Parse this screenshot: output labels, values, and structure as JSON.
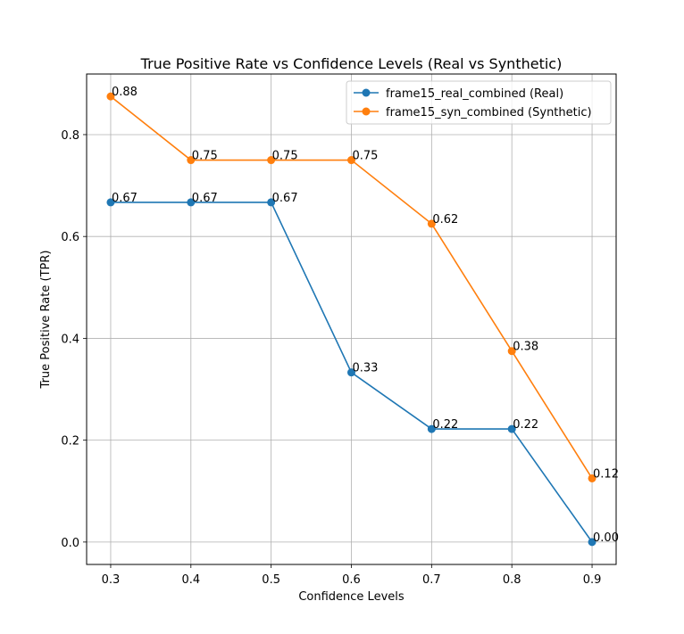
{
  "chart_data": {
    "type": "line",
    "title": "True Positive Rate vs Confidence Levels (Real vs Synthetic)",
    "xlabel": "Confidence Levels",
    "ylabel": "True Positive Rate (TPR)",
    "x": [
      0.3,
      0.4,
      0.5,
      0.6,
      0.7,
      0.8,
      0.9
    ],
    "x_tick_labels": [
      "0.3",
      "0.4",
      "0.5",
      "0.6",
      "0.7",
      "0.8",
      "0.9"
    ],
    "y_ticks": [
      0.0,
      0.2,
      0.4,
      0.6,
      0.8
    ],
    "y_tick_labels": [
      "0.0",
      "0.2",
      "0.4",
      "0.6",
      "0.8"
    ],
    "xlim": [
      0.27,
      0.93
    ],
    "ylim": [
      -0.044,
      0.919
    ],
    "grid": true,
    "legend_position": "top-right",
    "series": [
      {
        "name": "frame15_real_combined (Real)",
        "color": "#1f77b4",
        "values": [
          0.667,
          0.667,
          0.667,
          0.333,
          0.222,
          0.222,
          0.0
        ],
        "labels": [
          "0.67",
          "0.67",
          "0.67",
          "0.33",
          "0.22",
          "0.22",
          "0.00"
        ]
      },
      {
        "name": "frame15_syn_combined (Synthetic)",
        "color": "#ff7f0e",
        "values": [
          0.875,
          0.75,
          0.75,
          0.75,
          0.625,
          0.375,
          0.125
        ],
        "labels": [
          "0.88",
          "0.75",
          "0.75",
          "0.75",
          "0.62",
          "0.38",
          "0.12"
        ]
      }
    ]
  }
}
